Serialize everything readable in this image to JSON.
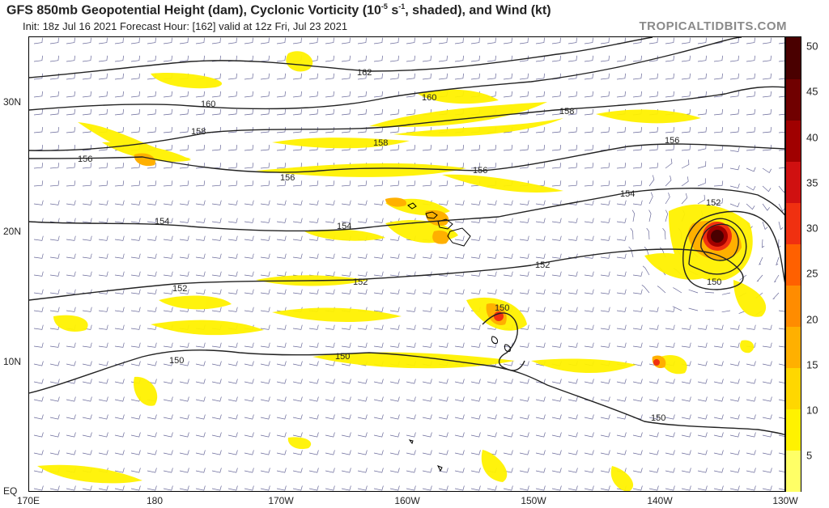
{
  "header": {
    "title_main": "GFS 850mb Geopotential Height (dam), Cyclonic Vorticity (10",
    "title_sup": "-5",
    "title_mid": " s",
    "title_sup2": "-1",
    "title_end": ", shaded), and Wind (kt)",
    "subtitle": "Init: 18z Jul 16 2021   Forecast Hour: [162]   valid at 12z Fri, Jul 23 2021",
    "brand": "TROPICALTIDBITS.COM"
  },
  "axes": {
    "lat_labels": [
      "30N",
      "20N",
      "10N",
      "EQ"
    ],
    "lon_labels": [
      "170E",
      "180",
      "170W",
      "160W",
      "150W",
      "140W",
      "130W"
    ]
  },
  "colorbar": {
    "ticks": [
      "50",
      "45",
      "40",
      "35",
      "30",
      "25",
      "20",
      "15",
      "10",
      "5"
    ],
    "colors": [
      "#ffff66",
      "#fff200",
      "#ffd700",
      "#ffb000",
      "#ff8c00",
      "#ff6000",
      "#f03010",
      "#d01010",
      "#a00000",
      "#700000",
      "#4a0000"
    ]
  },
  "contours": {
    "labels": [
      "162",
      "160",
      "160",
      "158",
      "158",
      "158",
      "156",
      "156",
      "156",
      "156",
      "154",
      "154",
      "154",
      "152",
      "152",
      "152",
      "152",
      "150",
      "150",
      "150",
      "150",
      "150"
    ]
  },
  "icons": {
    "wind_barbs": "wind-barb-icon",
    "cyclone": "cyclone-icon"
  }
}
